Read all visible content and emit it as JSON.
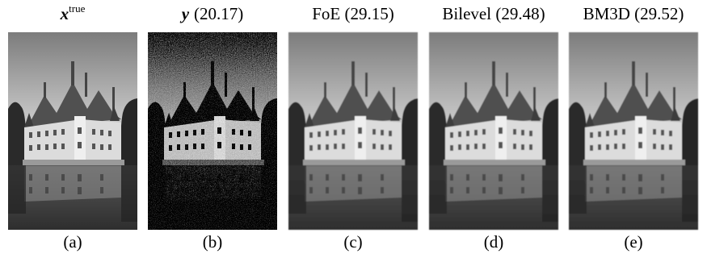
{
  "figure": {
    "panels": [
      {
        "title": {
          "symbol": "x",
          "superscript": "true"
        },
        "label": "(a)"
      },
      {
        "title": {
          "symbol": "y",
          "text": "(20.17)"
        },
        "label": "(b)"
      },
      {
        "title": {
          "text": "FoE (29.15)"
        },
        "label": "(c)"
      },
      {
        "title": {
          "text": "Bilevel (29.48)"
        },
        "label": "(d)"
      },
      {
        "title": {
          "text": "BM3D (29.52)"
        },
        "label": "(e)"
      }
    ]
  }
}
